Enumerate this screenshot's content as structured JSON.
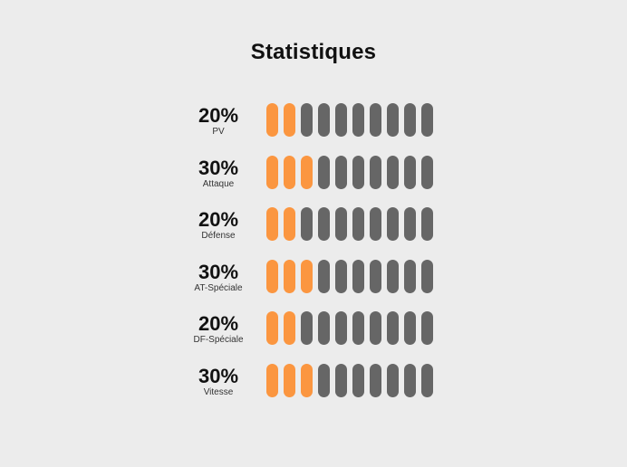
{
  "title": "Statistiques",
  "colors": {
    "filled": "#fb9640",
    "empty": "#666666",
    "background": "#ececec"
  },
  "pills_per_stat": 10,
  "stats": [
    {
      "percent_label": "20%",
      "name": "PV",
      "filled": 2
    },
    {
      "percent_label": "30%",
      "name": "Attaque",
      "filled": 3
    },
    {
      "percent_label": "20%",
      "name": "Défense",
      "filled": 2
    },
    {
      "percent_label": "30%",
      "name": "AT-Spéciale",
      "filled": 3
    },
    {
      "percent_label": "20%",
      "name": "DF-Spéciale",
      "filled": 2
    },
    {
      "percent_label": "30%",
      "name": "Vitesse",
      "filled": 3
    }
  ]
}
